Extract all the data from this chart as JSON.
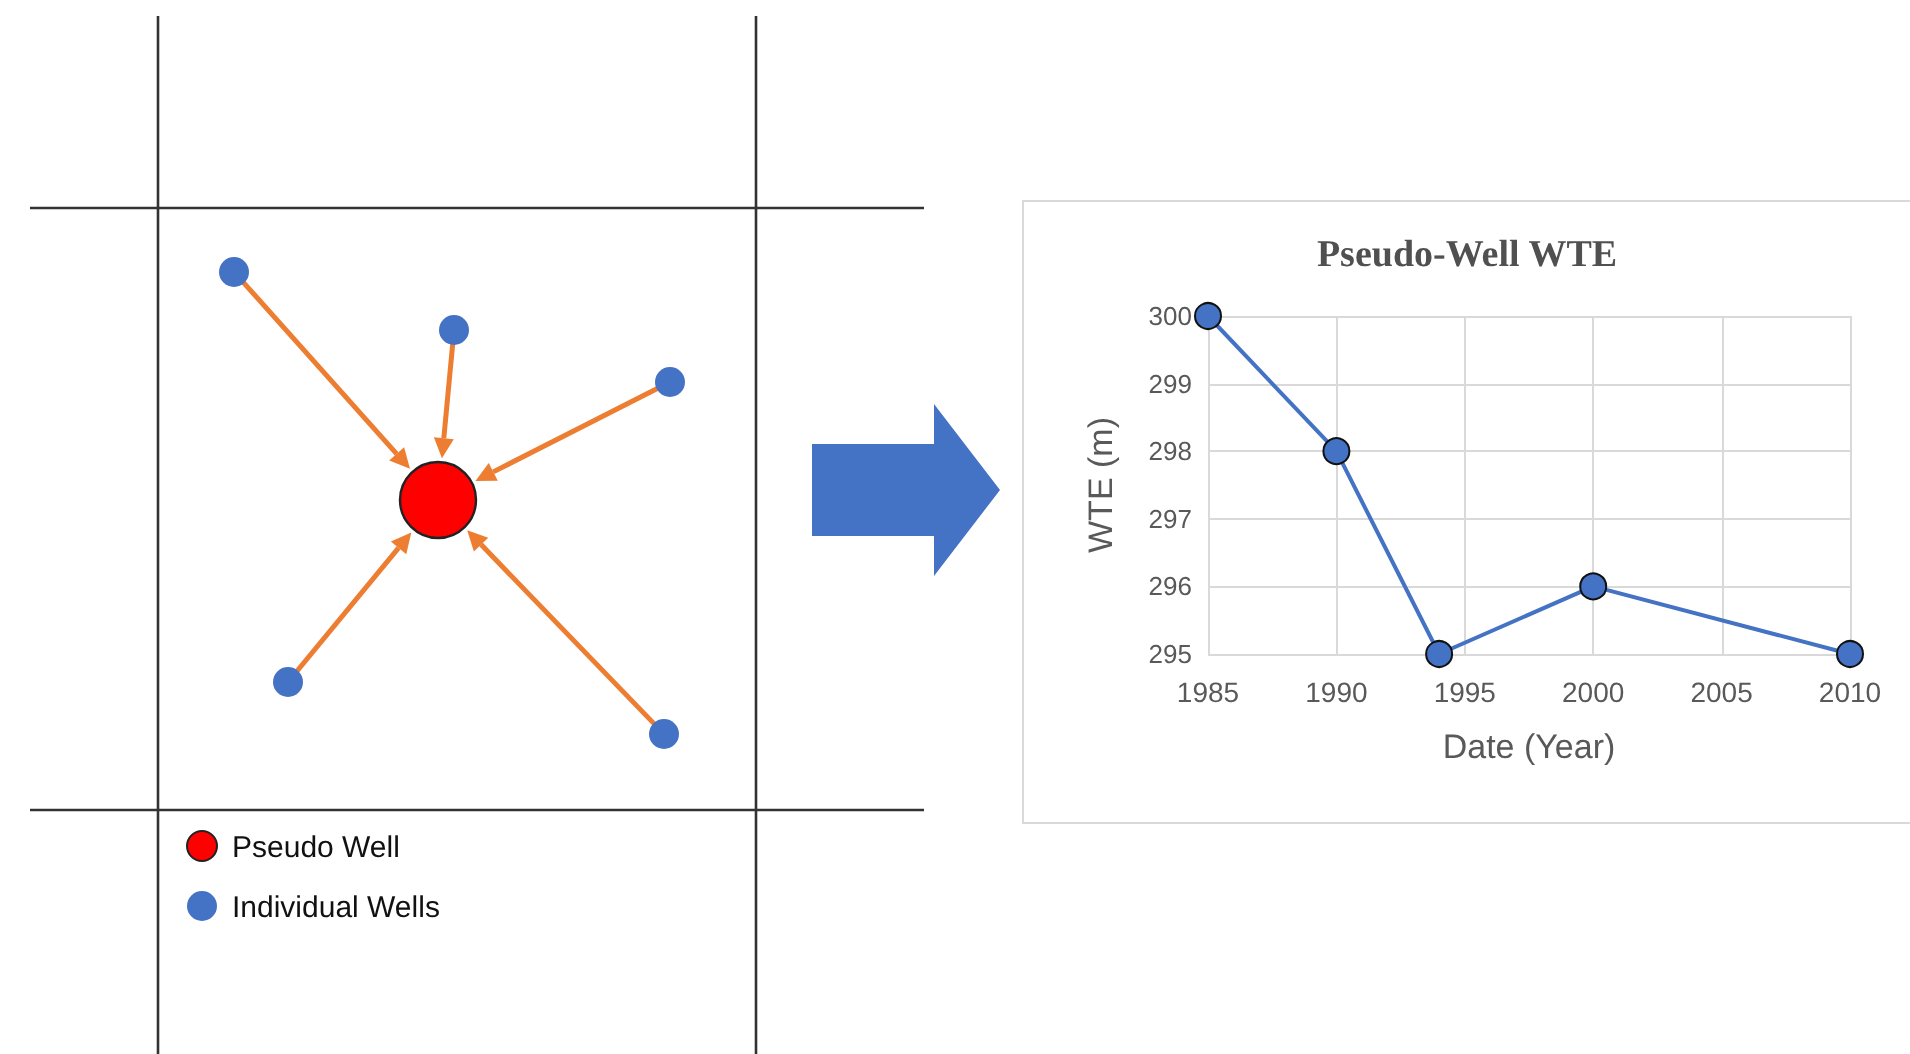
{
  "chart_data": [
    {
      "type": "other",
      "annotations": [
        "Pseudo Well",
        "Individual Wells"
      ]
    },
    {
      "type": "line",
      "title": "Pseudo-Well WTE",
      "xlabel": "Date (Year)",
      "ylabel": "WTE (m)",
      "x": [
        1985,
        1990,
        1994,
        2000,
        2010
      ],
      "series": [
        {
          "color": "#4472c4",
          "values": [
            300,
            298,
            295,
            296,
            295
          ]
        }
      ],
      "xlim": [
        1985,
        2010
      ],
      "xticks": [
        1985,
        1990,
        1995,
        2000,
        2005,
        2010
      ],
      "ylim": [
        295,
        300
      ],
      "yticks": [
        295,
        296,
        297,
        298,
        299,
        300
      ],
      "grid": true,
      "marker": "circle",
      "line_style": "solid"
    }
  ]
}
